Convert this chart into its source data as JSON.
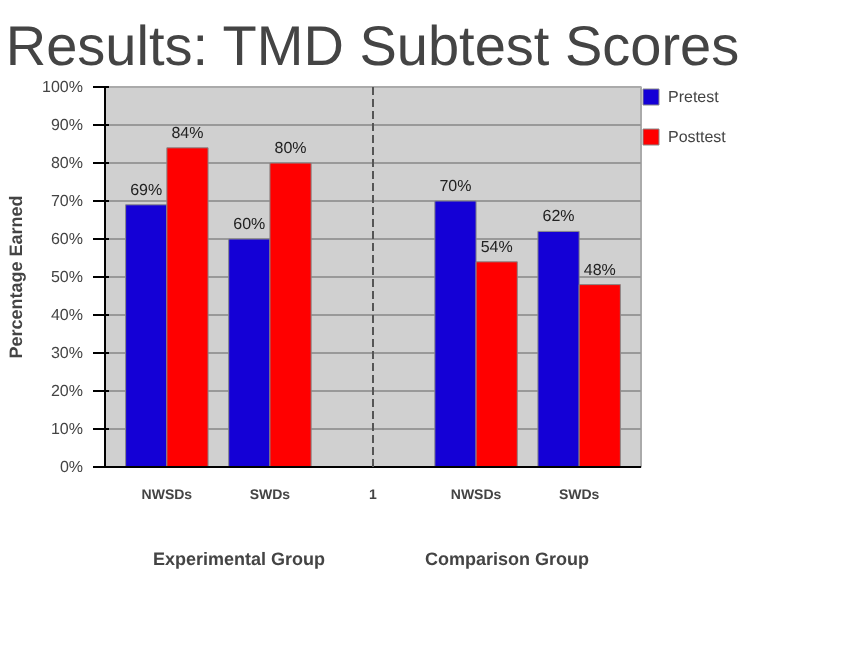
{
  "chart_data": {
    "type": "bar",
    "title": "Results: TMD Subtest Scores",
    "ylabel": "Percentage Earned",
    "categories": [
      "NWSDs",
      "SWDs",
      "1",
      "NWSDs",
      "SWDs"
    ],
    "series": [
      {
        "name": "Pretest",
        "color": "#1400d6",
        "values": [
          69,
          60,
          null,
          70,
          62
        ],
        "value_labels": [
          "69%",
          "60%",
          null,
          "70%",
          "62%"
        ]
      },
      {
        "name": "Posttest",
        "color": "#ff0000",
        "values": [
          84,
          80,
          null,
          54,
          48
        ],
        "value_labels": [
          "84%",
          "80%",
          null,
          "54%",
          "48%"
        ]
      }
    ],
    "ylim": [
      0,
      100
    ],
    "yticks": [
      {
        "value": 0,
        "label": "0%"
      },
      {
        "value": 10,
        "label": "10%"
      },
      {
        "value": 20,
        "label": "20%"
      },
      {
        "value": 30,
        "label": "30%"
      },
      {
        "value": 40,
        "label": "40%"
      },
      {
        "value": 50,
        "label": "50%"
      },
      {
        "value": 60,
        "label": "60%"
      },
      {
        "value": 70,
        "label": "70%"
      },
      {
        "value": 80,
        "label": "80%"
      },
      {
        "value": 90,
        "label": "90%"
      },
      {
        "value": 100,
        "label": "100%"
      }
    ],
    "grid": "y",
    "legend": "right",
    "ref_lines": [
      {
        "axis": "x",
        "value": "1",
        "line_style": "dashed",
        "color": "#555555"
      }
    ],
    "annotations": [
      "Experimental Group",
      "Comparison Group"
    ]
  }
}
